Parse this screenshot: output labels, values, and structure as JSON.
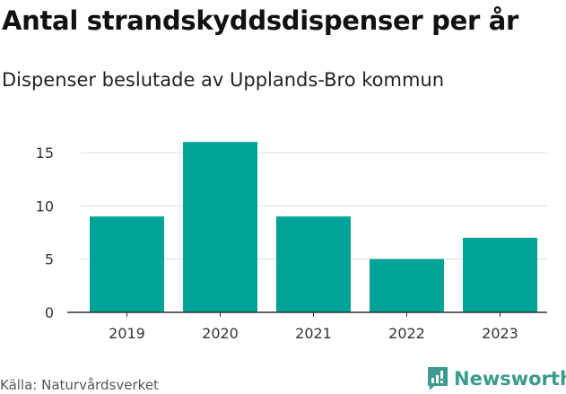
{
  "title": "Antal strandskyddsdispenser per år",
  "subtitle": "Dispenser beslutade av Upplands-Bro kommun",
  "source": "Källa: Naturvårdsverket",
  "logo": "Newsworthy",
  "colors": {
    "bar": "#00a398",
    "grid": "#dddddd",
    "brand": "#3a9b8e"
  },
  "chart_data": {
    "type": "bar",
    "title": "Antal strandskyddsdispenser per år",
    "xlabel": "",
    "ylabel": "",
    "categories": [
      "2019",
      "2020",
      "2021",
      "2022",
      "2023"
    ],
    "values": [
      9,
      16,
      9,
      5,
      7
    ],
    "ylim": [
      0,
      17
    ],
    "yticks": [
      0,
      5,
      10,
      15
    ],
    "grid": true
  }
}
